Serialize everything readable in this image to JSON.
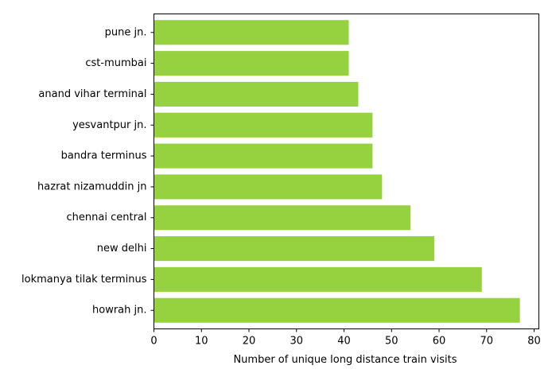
{
  "chart_data": {
    "type": "bar",
    "orientation": "horizontal",
    "categories": [
      "howrah jn.",
      "lokmanya tilak terminus",
      "new delhi",
      "chennai central",
      "hazrat nizamuddin jn",
      "bandra terminus",
      "yesvantpur jn.",
      "anand vihar terminal",
      "cst-mumbai",
      "pune jn."
    ],
    "values": [
      77,
      69,
      59,
      54,
      48,
      46,
      46,
      43,
      41,
      41
    ],
    "title": "",
    "xlabel": "Number of unique long distance train visits",
    "ylabel": "",
    "xlim": [
      0,
      81
    ],
    "xticks": [
      "0",
      "10",
      "20",
      "30",
      "40",
      "50",
      "60",
      "70",
      "80"
    ],
    "bar_color": "#96d13f",
    "grid": false,
    "legend": "none"
  }
}
